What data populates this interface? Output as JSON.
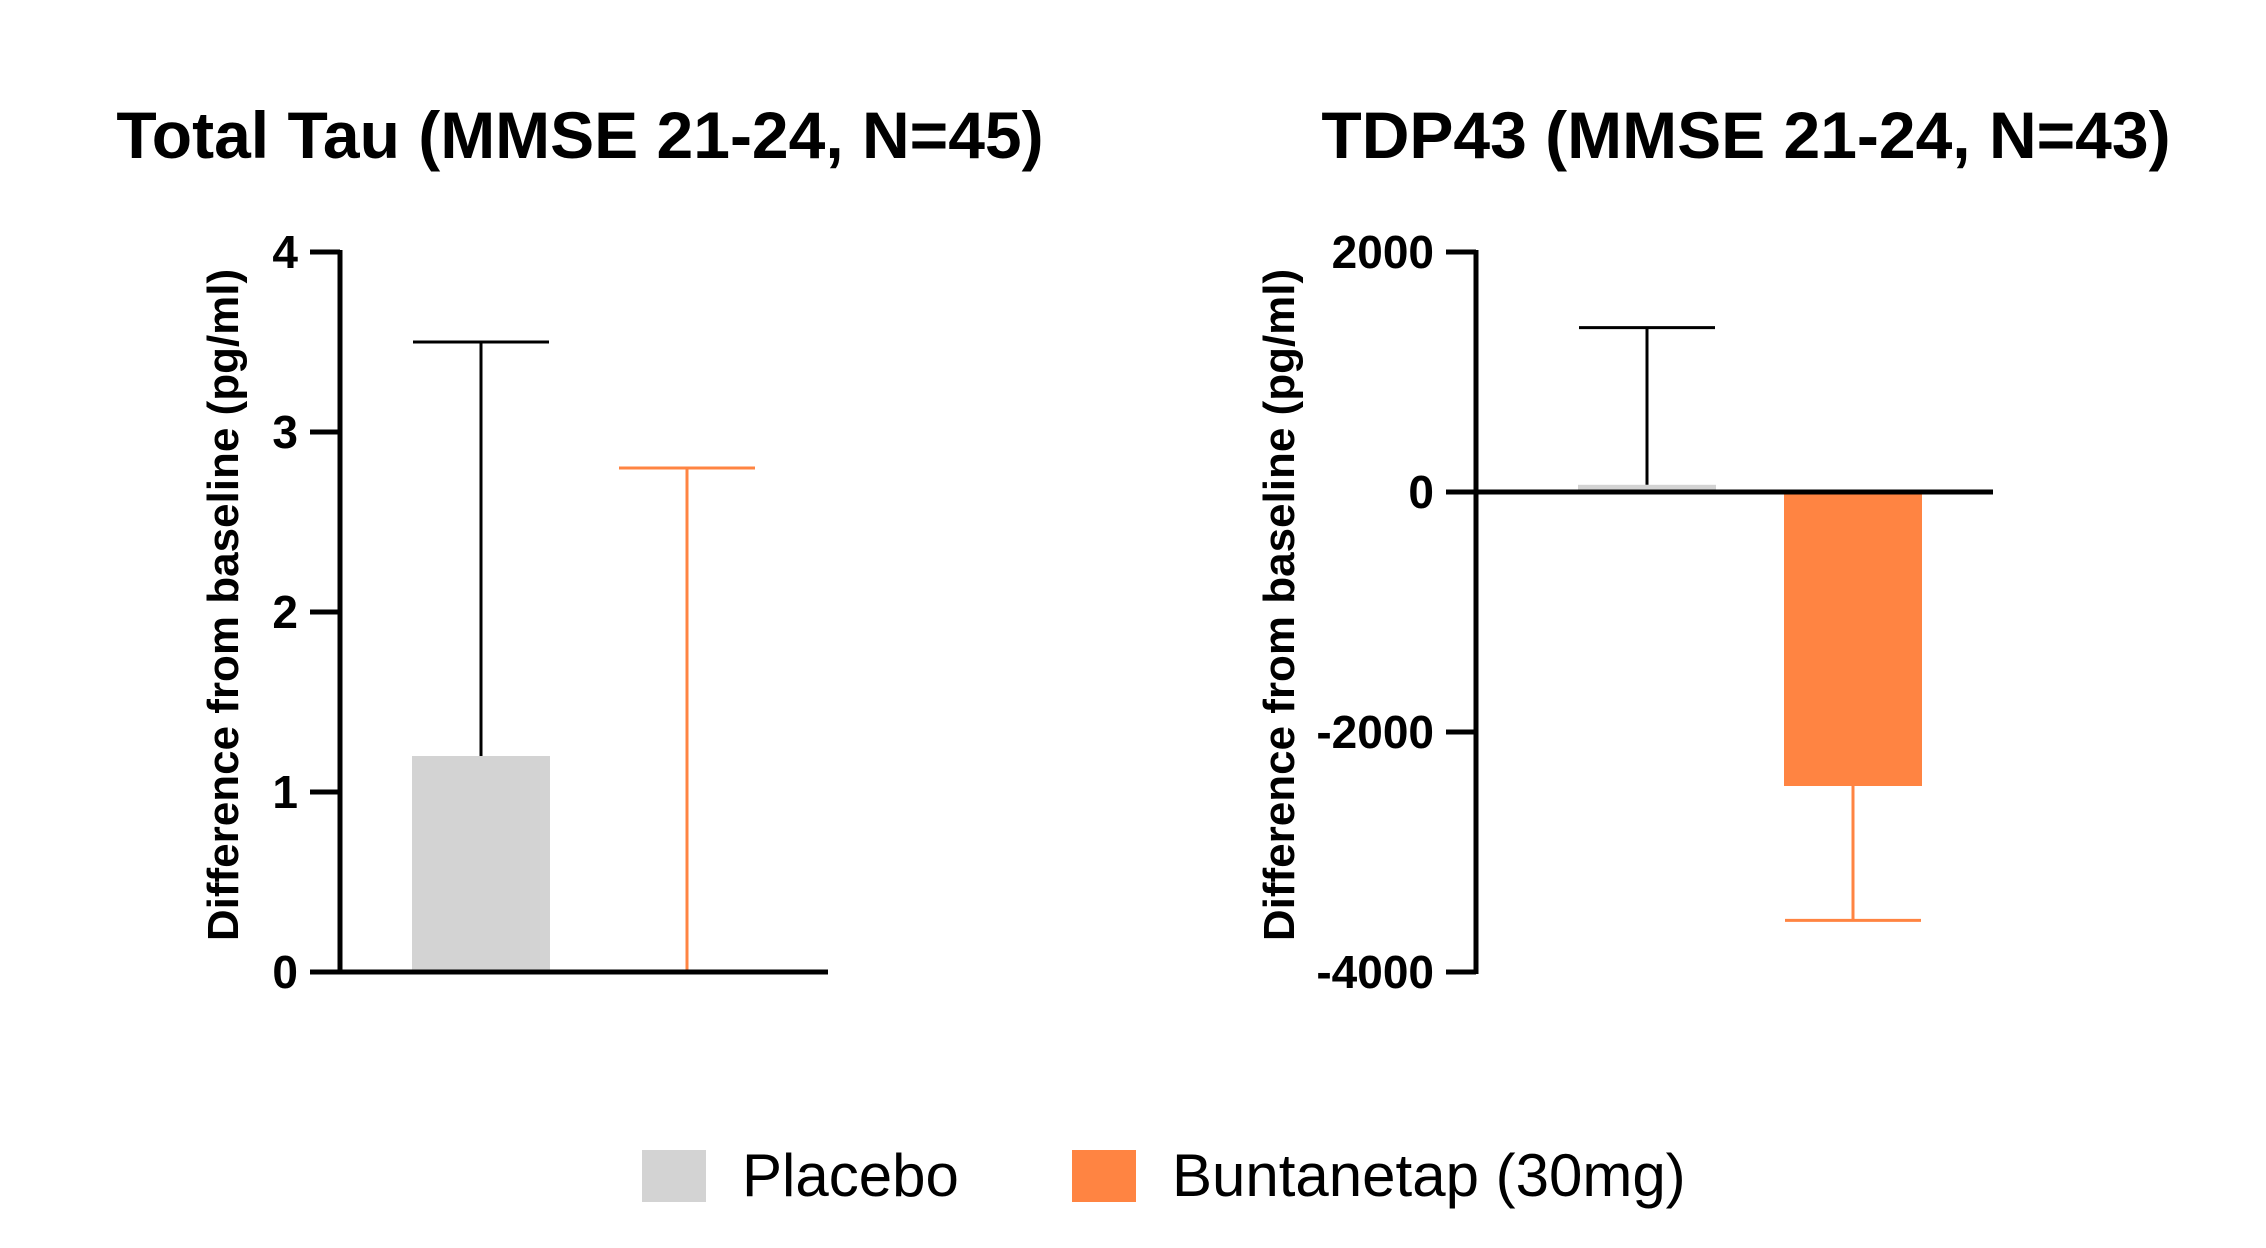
{
  "legend": {
    "items": [
      {
        "label": "Placebo",
        "color": "#d3d3d3"
      },
      {
        "label": "Buntanetap (30mg)",
        "color": "#ff8442"
      }
    ]
  },
  "chart_data": [
    {
      "type": "bar",
      "title": "Total Tau (MMSE 21-24, N=45)",
      "ylabel": "Difference from baseline  (pg/ml)",
      "xlabel": "",
      "ylim": [
        0,
        4
      ],
      "yticks": [
        0,
        1,
        2,
        3,
        4
      ],
      "ytick_labels": [
        "0",
        "1",
        "2",
        "3",
        "4"
      ],
      "categories": [
        "Placebo",
        "Buntanetap (30mg)"
      ],
      "values": [
        1.2,
        0.0
      ],
      "error_upper": [
        3.5,
        2.8
      ],
      "colors": [
        "#d3d3d3",
        "#ff8442"
      ],
      "error_colors": [
        "#000000",
        "#ff8442"
      ]
    },
    {
      "type": "bar",
      "title": "TDP43 (MMSE 21-24, N=43)",
      "ylabel": "Difference from baseline  (pg/ml)",
      "xlabel": "",
      "ylim": [
        -4000,
        2000
      ],
      "yticks": [
        -4000,
        -2000,
        0,
        2000
      ],
      "ytick_labels": [
        "-4000",
        "-2000",
        "0",
        "2000"
      ],
      "categories": [
        "Placebo",
        "Buntanetap (30mg)"
      ],
      "values": [
        60,
        -2450
      ],
      "error_upper": [
        1370,
        null
      ],
      "error_lower": [
        null,
        -3570
      ],
      "colors": [
        "#d3d3d3",
        "#ff8442"
      ],
      "error_colors": [
        "#000000",
        "#ff8442"
      ]
    }
  ]
}
